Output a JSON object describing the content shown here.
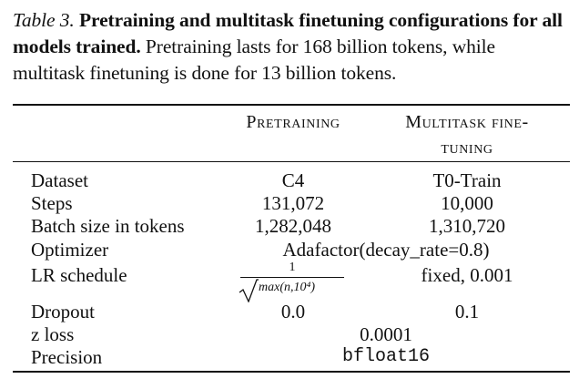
{
  "caption": {
    "label": "Table 3.",
    "title": "Pretraining and multitask finetuning configurations for all models trained.",
    "text": "Pretraining lasts for 168 billion tokens, while multitask finetuning is done for 13 billion tokens."
  },
  "header": {
    "col1": "Pretraining",
    "col2_line1": "Multitask fine-",
    "col2_line2": "tuning"
  },
  "rows": [
    {
      "name": "Dataset",
      "c1": "C4",
      "c2": "T0-Train"
    },
    {
      "name": "Steps",
      "c1": "131,072",
      "c2": "10,000"
    },
    {
      "name": "Batch size in tokens",
      "c1": "1,282,048",
      "c2": "1,310,720"
    },
    {
      "name": "Optimizer",
      "span": "Adafactor(decay_rate=0.8)"
    },
    {
      "name": "LR schedule",
      "c1_num": "1",
      "c1_den": "max(n,10⁴)",
      "c2": "fixed, 0.001"
    },
    {
      "name": "Dropout",
      "c1": "0.0",
      "c2": "0.1"
    },
    {
      "name": "z loss",
      "span": "0.0001"
    },
    {
      "name": "Precision",
      "span": "bfloat16"
    }
  ]
}
